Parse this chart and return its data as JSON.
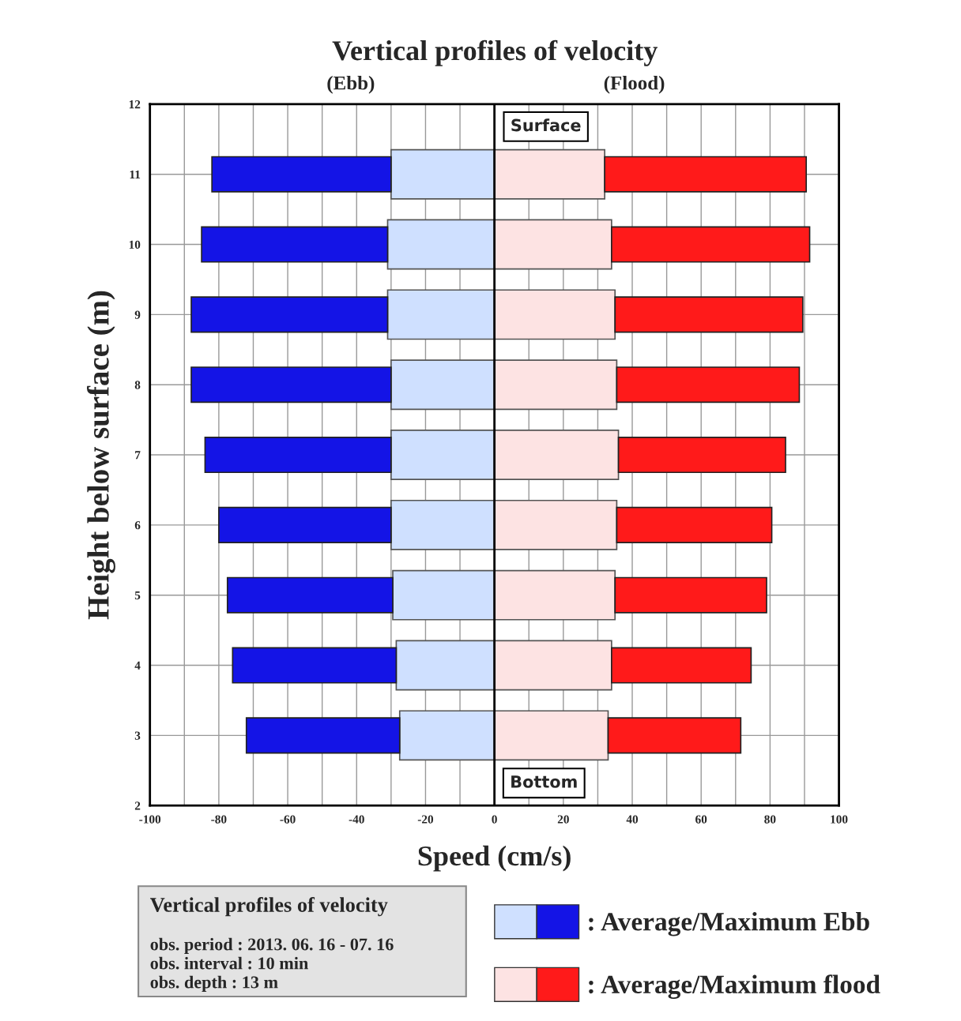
{
  "chart_data": {
    "type": "bar",
    "orientation": "horizontal",
    "stacked": true,
    "title": "Vertical profiles of velocity",
    "xlabel": "Speed (cm/s)",
    "ylabel": "Height below surface (m)",
    "x": [
      11,
      10,
      9,
      8,
      7,
      6,
      5,
      4,
      3
    ],
    "series": [
      {
        "color": "#cfe0ff",
        "values": [
          -30,
          -31,
          -31,
          -30,
          -30,
          -30,
          -29.5,
          -28.5,
          -27.5
        ]
      },
      {
        "name": ": Average/Maximum Ebb",
        "color": "#1414e6",
        "values": [
          -52,
          -54,
          -57,
          -58,
          -54,
          -50,
          -48,
          -47.5,
          -44.5
        ]
      },
      {
        "color": "#fde3e3",
        "values": [
          32,
          34,
          35,
          35.5,
          36,
          35.5,
          35,
          34,
          33
        ]
      },
      {
        "name": ": Average/Maximum flood",
        "color": "#ff1a1a",
        "values": [
          58.5,
          57.5,
          54.5,
          53,
          48.5,
          45,
          44,
          40.5,
          38.5
        ]
      }
    ],
    "xlim": [
      -100,
      100
    ],
    "ylim": [
      2,
      12
    ],
    "xticks": [
      -100,
      {
        "value": -90,
        "label": null
      },
      -80,
      {
        "value": -70,
        "label": null
      },
      -60,
      {
        "value": -50,
        "label": null
      },
      -40,
      {
        "value": -30,
        "label": null
      },
      -20,
      {
        "value": -10,
        "label": null
      },
      0,
      {
        "value": 10,
        "label": null
      },
      20,
      {
        "value": 30,
        "label": null
      },
      40,
      {
        "value": 50,
        "label": null
      },
      60,
      {
        "value": 70,
        "label": null
      },
      80,
      {
        "value": 90,
        "label": null
      },
      100
    ],
    "yticks": [
      2,
      3,
      4,
      5,
      6,
      7,
      8,
      9,
      10,
      11,
      12
    ],
    "ref_lines": [
      {
        "axis": "x",
        "value": 0,
        "color": "#000000"
      }
    ],
    "grid": true,
    "legend": "bottom right",
    "annotations": [
      "(Ebb)",
      "(Flood)",
      "Surface",
      "Bottom",
      "Vertical profiles of velocity",
      "obs. period : 2013. 06. 16 - 07. 16\nobs. interval : 10 min\nobs. depth : 13 m"
    ]
  }
}
